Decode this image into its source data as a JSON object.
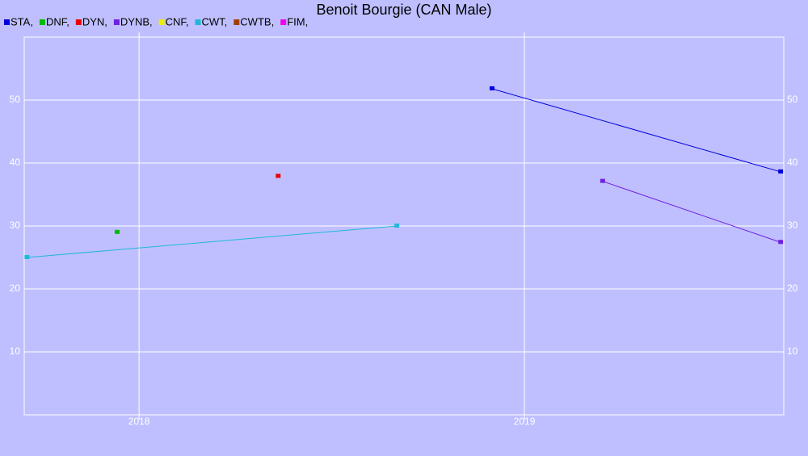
{
  "chart_data": {
    "type": "line",
    "title": "Benoit Bourgie (CAN Male)",
    "xlim": [
      2017.702,
      2019.673
    ],
    "xticks": [
      2018,
      2019
    ],
    "ylim": [
      0,
      60
    ],
    "yticks": [
      10,
      20,
      30,
      40,
      50
    ],
    "grid": true,
    "series": [
      {
        "name": "STA,",
        "color": "#0000dd",
        "x": [
          2018.916,
          2019.665
        ],
        "values": [
          51.8,
          38.6
        ]
      },
      {
        "name": "DNF,",
        "color": "#00bb00",
        "x": [
          2017.943
        ],
        "values": [
          29.0
        ]
      },
      {
        "name": "DYN,",
        "color": "#ee0000",
        "x": [
          2018.361
        ],
        "values": [
          37.9
        ]
      },
      {
        "name": "DYNB,",
        "color": "#7020e0",
        "x": [
          2019.203,
          2019.665
        ],
        "values": [
          37.1,
          27.4
        ]
      },
      {
        "name": "CNF,",
        "color": "#eeee00",
        "x": [],
        "values": []
      },
      {
        "name": "CWT,",
        "color": "#20b8d8",
        "x": [
          2017.709,
          2018.669
        ],
        "values": [
          25.0,
          30.0
        ]
      },
      {
        "name": "CWTB,",
        "color": "#a04000",
        "x": [],
        "values": []
      },
      {
        "name": "FIM,",
        "color": "#ee00ee",
        "x": [],
        "values": []
      }
    ]
  }
}
